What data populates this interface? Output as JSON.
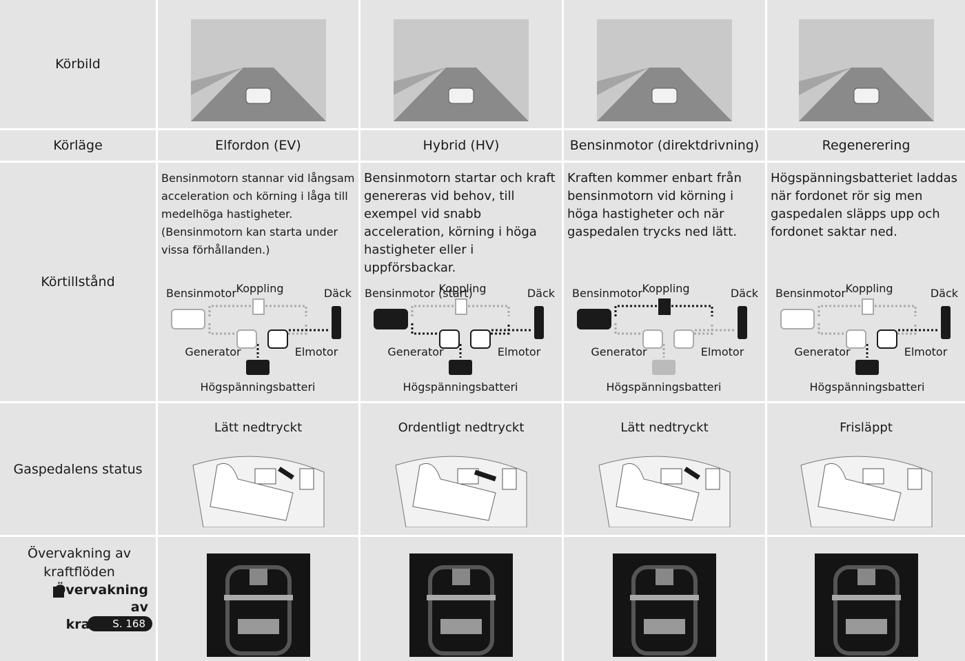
{
  "image_row": {
    "label": "Körbild"
  },
  "mode_row": {
    "label": "Körläge",
    "cells": [
      "Elfordon (EV)",
      "Hybrid (HV)",
      "Bensinmotor (direktdrivning)",
      "Regenerering"
    ]
  },
  "state_row": {
    "label": "Körtillstånd",
    "cells": [
      {
        "description": "Bensinmotorn stannar vid långsam acceleration och körning i låga till medelhöga hastigheter.",
        "note": "(Bensinmotorn kan starta under vissa förhållanden.)",
        "diagram": {
          "engine": "Bensinmotor",
          "clutch": "Koppling",
          "tire": "Däck",
          "generator": "Generator",
          "motor": "Elmotor",
          "battery": "Högspänningsbatteri"
        }
      },
      {
        "description": "Bensinmotorn startar och kraft genereras vid behov, till exempel vid snabb acceleration, körning i höga hastigheter eller i uppförsbackar.",
        "diagram": {
          "engine": "Bensinmotor (start)",
          "clutch": "Koppling",
          "tire": "Däck",
          "generator": "Generator",
          "motor": "Elmotor",
          "battery": "Högspänningsbatteri"
        }
      },
      {
        "description": "Kraften kommer enbart från bensinmotorn vid körning i höga hastigheter och när gaspedalen trycks ned lätt.",
        "diagram": {
          "engine": "Bensinmotor",
          "clutch": "Koppling",
          "tire": "Däck",
          "generator": "Generator",
          "motor": "Elmotor",
          "battery": "Högspänningsbatteri"
        }
      },
      {
        "description": "Högspänningsbatteriet laddas när fordonet rör sig men gaspedalen släpps upp och fordonet saktar ned.",
        "diagram": {
          "engine": "Bensinmotor",
          "clutch": "Koppling",
          "tire": "Däck",
          "generator": "Generator",
          "motor": "Elmotor",
          "battery": "Högspänningsbatteri"
        }
      }
    ]
  },
  "pedal_row": {
    "label": "Gaspedalens status",
    "cells": [
      "Lätt nedtryckt",
      "Ordentligt nedtryckt",
      "Lätt nedtryckt",
      "Frisläppt"
    ]
  },
  "monitor_row": {
    "label": "Övervakning av kraftflöden",
    "link": "Övervakning av kraftflöden",
    "page": "S. 168"
  }
}
